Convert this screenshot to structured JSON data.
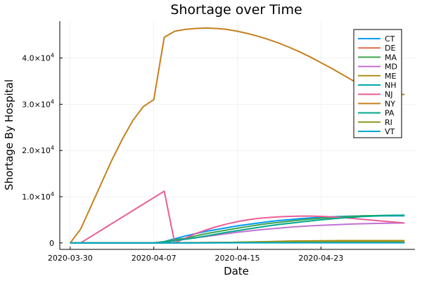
{
  "chart_data": {
    "type": "line",
    "title": "Shortage over Time",
    "xlabel": "Date",
    "ylabel": "Shortage By Hospital",
    "x_ticks": [
      "2020-03-30",
      "2020-04-07",
      "2020-04-15",
      "2020-04-23"
    ],
    "y_ticks": [
      {
        "value": 0,
        "label": "0"
      },
      {
        "value": 10000,
        "mantissa": "1.0×10",
        "exponent": "4"
      },
      {
        "value": 20000,
        "mantissa": "2.0×10",
        "exponent": "4"
      },
      {
        "value": 30000,
        "mantissa": "3.0×10",
        "exponent": "4"
      },
      {
        "value": 40000,
        "mantissa": "4.0×10",
        "exponent": "4"
      }
    ],
    "xlim": [
      "2020-03-29",
      "2020-05-02"
    ],
    "ylim": [
      -1400,
      48000
    ],
    "grid": true,
    "legend_position": "top-right",
    "x": [
      "2020-03-30",
      "2020-03-31",
      "2020-04-01",
      "2020-04-02",
      "2020-04-03",
      "2020-04-04",
      "2020-04-05",
      "2020-04-06",
      "2020-04-07",
      "2020-04-08",
      "2020-04-09",
      "2020-04-10",
      "2020-04-11",
      "2020-04-12",
      "2020-04-13",
      "2020-04-14",
      "2020-04-15",
      "2020-04-16",
      "2020-04-17",
      "2020-04-18",
      "2020-04-19",
      "2020-04-20",
      "2020-04-21",
      "2020-04-22",
      "2020-04-23",
      "2020-04-24",
      "2020-04-25",
      "2020-04-26",
      "2020-04-27",
      "2020-04-28",
      "2020-04-29",
      "2020-04-30",
      "2020-05-01"
    ],
    "series": [
      {
        "name": "CT",
        "color": "#009af9",
        "values": [
          0,
          0,
          0,
          0,
          0,
          0,
          0,
          0,
          0,
          300,
          900,
          1500,
          2000,
          2500,
          2900,
          3300,
          3700,
          4000,
          4300,
          4600,
          4850,
          5050,
          5250,
          5400,
          5550,
          5650,
          5750,
          5800,
          5850,
          5850,
          5850,
          5850,
          5850
        ]
      },
      {
        "name": "DE",
        "color": "#e26f46",
        "values": [
          0,
          0,
          0,
          0,
          0,
          0,
          0,
          0,
          0,
          20,
          40,
          60,
          70,
          80,
          90,
          100,
          100,
          100,
          100,
          100,
          100,
          100,
          100,
          100,
          100,
          100,
          100,
          100,
          100,
          100,
          100,
          100,
          100
        ]
      },
      {
        "name": "MA",
        "color": "#3da44d",
        "values": [
          0,
          0,
          0,
          0,
          0,
          0,
          0,
          0,
          0,
          300,
          700,
          1000,
          1500,
          2000,
          2400,
          2800,
          3200,
          3550,
          3900,
          4200,
          4450,
          4700,
          4950,
          5150,
          5350,
          5500,
          5650,
          5750,
          5850,
          5900,
          5950,
          6000,
          6000
        ]
      },
      {
        "name": "MD",
        "color": "#c271d2",
        "values": [
          0,
          0,
          0,
          0,
          0,
          0,
          0,
          0,
          0,
          200,
          500,
          800,
          1100,
          1400,
          1700,
          2000,
          2300,
          2550,
          2800,
          3000,
          3200,
          3400,
          3550,
          3700,
          3800,
          3900,
          4000,
          4100,
          4150,
          4200,
          4250,
          4300,
          4300
        ]
      },
      {
        "name": "ME",
        "color": "#ac8e18",
        "values": [
          0,
          0,
          0,
          0,
          0,
          0,
          0,
          0,
          0,
          0,
          10,
          20,
          40,
          60,
          80,
          100,
          150,
          200,
          250,
          300,
          350,
          400,
          420,
          440,
          460,
          480,
          500,
          500,
          500,
          500,
          500,
          500,
          500
        ]
      },
      {
        "name": "NH",
        "color": "#00a9ad",
        "values": [
          0,
          0,
          0,
          0,
          0,
          0,
          0,
          0,
          0,
          0,
          5,
          10,
          15,
          20,
          25,
          30,
          35,
          40,
          45,
          50,
          55,
          60,
          60,
          60,
          60,
          60,
          60,
          60,
          60,
          60,
          60,
          60,
          60
        ]
      },
      {
        "name": "NJ",
        "color": "#ea5e97",
        "values": [
          0,
          0,
          1400,
          2800,
          4200,
          5600,
          7000,
          8400,
          9800,
          11200,
          0,
          1000,
          2000,
          2800,
          3500,
          4100,
          4600,
          5000,
          5300,
          5500,
          5650,
          5750,
          5800,
          5800,
          5750,
          5650,
          5500,
          5300,
          5100,
          4900,
          4700,
          4500,
          4300
        ]
      },
      {
        "name": "NY",
        "color": "#c5801e",
        "values": [
          0,
          3000,
          8000,
          13000,
          18000,
          22500,
          26500,
          29500,
          31000,
          44500,
          45800,
          46200,
          46400,
          46500,
          46400,
          46200,
          45800,
          45300,
          44700,
          44000,
          43200,
          42300,
          41300,
          40200,
          39000,
          37800,
          36500,
          35200,
          34000,
          33000,
          32500,
          32300,
          32100
        ]
      },
      {
        "name": "PA",
        "color": "#00a98d",
        "values": [
          0,
          0,
          0,
          0,
          0,
          0,
          0,
          0,
          0,
          200,
          500,
          800,
          1100,
          1500,
          1900,
          2300,
          2650,
          3000,
          3350,
          3700,
          4000,
          4250,
          4500,
          4750,
          5000,
          5200,
          5400,
          5550,
          5700,
          5800,
          5900,
          5950,
          6000
        ]
      },
      {
        "name": "RI",
        "color": "#8e971d",
        "values": [
          0,
          0,
          0,
          0,
          0,
          0,
          0,
          0,
          0,
          10,
          20,
          30,
          50,
          70,
          90,
          110,
          130,
          150,
          170,
          190,
          210,
          230,
          240,
          250,
          260,
          270,
          280,
          280,
          280,
          280,
          280,
          280,
          280
        ]
      },
      {
        "name": "VT",
        "color": "#00a8cb",
        "values": [
          0,
          0,
          0,
          0,
          0,
          0,
          0,
          0,
          0,
          0,
          0,
          5,
          10,
          15,
          20,
          25,
          30,
          30,
          30,
          30,
          30,
          30,
          30,
          30,
          30,
          30,
          30,
          30,
          30,
          30,
          30,
          30,
          30
        ]
      }
    ]
  }
}
